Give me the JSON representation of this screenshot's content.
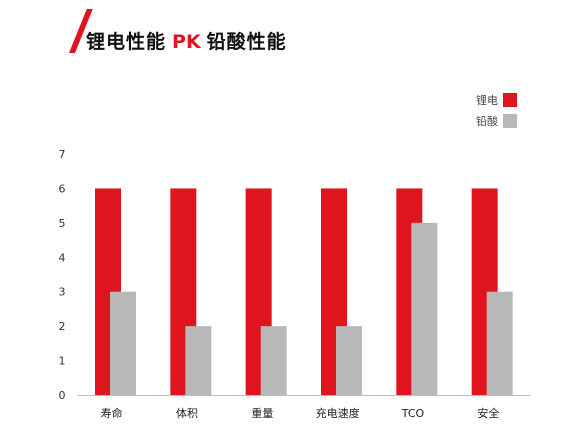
{
  "title": {
    "part1": "锂电性能",
    "part2": "PK",
    "part3": "铅酸性能"
  },
  "colors": {
    "accent": "#e0141e",
    "lithium": "#e0141e",
    "leadacid": "#b8b8b8",
    "axis": "#bdbdbd",
    "grid": "#e6e6e6"
  },
  "chart_data": {
    "type": "bar",
    "categories": [
      "寿命",
      "体积",
      "重量",
      "充电速度",
      "TCO",
      "安全"
    ],
    "series": [
      {
        "name": "锂电",
        "values": [
          6,
          6,
          6,
          6,
          6,
          6
        ]
      },
      {
        "name": "铅酸",
        "values": [
          3,
          2,
          2,
          2,
          5,
          3
        ]
      }
    ],
    "ylim": [
      0,
      7
    ],
    "yticks": [
      0,
      1,
      2,
      3,
      4,
      5,
      6,
      7
    ],
    "legend_position": "top-right",
    "grid": false,
    "title": "",
    "xlabel": "",
    "ylabel": ""
  }
}
